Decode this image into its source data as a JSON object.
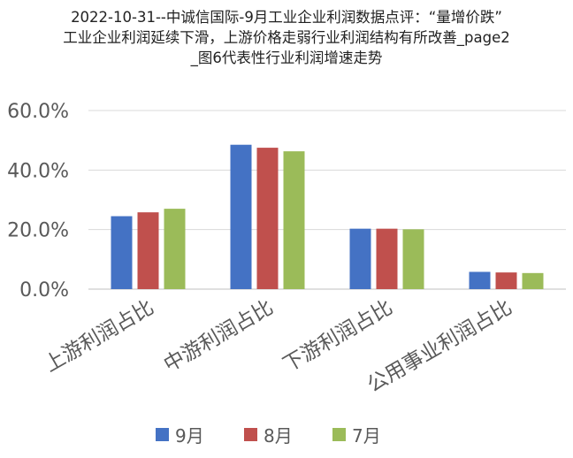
{
  "chart_data": {
    "type": "bar",
    "title_lines": [
      "2022-10-31--中诚信国际-9月工业企业利润数据点评：“量增价跌”",
      "工业企业利润延续下滑，上游价格走弱行业利润结构有所改善_page2",
      "_图6代表性行业利润增速走势"
    ],
    "categories": [
      "上游利润占比",
      "中游利润占比",
      "下游利润占比",
      "公用事业利润占比"
    ],
    "series": [
      {
        "name": "9月",
        "color": "#4472C4",
        "values": [
          24.5,
          48.5,
          20.3,
          5.8
        ]
      },
      {
        "name": "8月",
        "color": "#C0504D",
        "values": [
          25.8,
          47.5,
          20.3,
          5.6
        ]
      },
      {
        "name": "7月",
        "color": "#9BBB59",
        "values": [
          27.0,
          46.3,
          20.1,
          5.4
        ]
      }
    ],
    "ylim": [
      0,
      60
    ],
    "y_ticks": [
      "0.0%",
      "20.0%",
      "40.0%",
      "60.0%"
    ],
    "grid": true,
    "legend_position": "bottom"
  }
}
